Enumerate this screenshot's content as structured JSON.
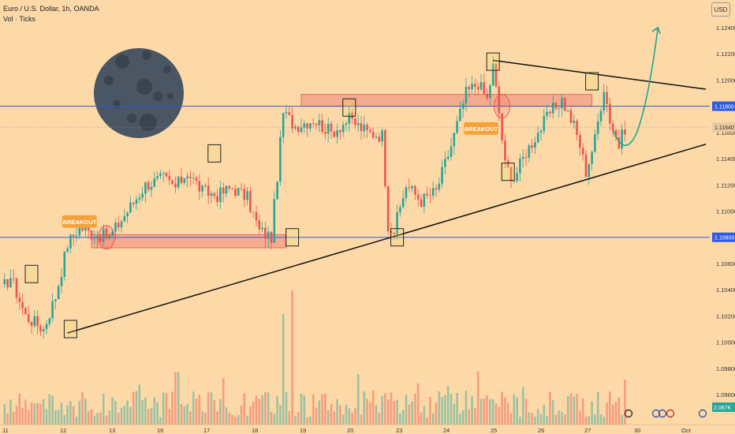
{
  "header": {
    "symbol": "Euro / U.S. Dollar, 1h, OANDA",
    "volume_label": "Vol · Ticks",
    "currency_button": "USD"
  },
  "colors": {
    "background": "#FDD9A8",
    "up": "#26A69A",
    "down": "#EF5350",
    "zone_fill": "#F4A38B",
    "zone_stroke": "#E05A4A",
    "level_line": "#2F5BE0",
    "trendline": "#111111",
    "projection": "#1FA58C",
    "breakout_badge": "#F6A23C",
    "moon": "#4A5663",
    "moon_crater": "#3A444F"
  },
  "chart_data": {
    "type": "candlestick",
    "title": "Euro / U.S. Dollar, 1h, OANDA",
    "ylabel": "USD",
    "ylim": [
      1.0945,
      1.1255
    ],
    "y_ticks": [
      "1.12400",
      "1.12200",
      "1.12000",
      "1.11800",
      "1.11600",
      "1.11400",
      "1.11200",
      "1.11000",
      "1.10800",
      "1.10600",
      "1.10400",
      "1.10200",
      "1.10000",
      "1.09800",
      "1.09600"
    ],
    "x_ticks": [
      "11",
      "12",
      "13",
      "16",
      "17",
      "18",
      "19",
      "20",
      "23",
      "24",
      "25",
      "26",
      "27",
      "30",
      "Oct"
    ],
    "price_labels": [
      {
        "value": 1.118,
        "text": "1.11800",
        "style": "level"
      },
      {
        "value": 1.1164,
        "text": "1.11640",
        "style": "current"
      },
      {
        "value": 1.108,
        "text": "1.10800",
        "style": "level"
      }
    ],
    "volume_label": "2.067K",
    "key_points": [
      {
        "t": 0,
        "price": 1.104
      },
      {
        "t": 3,
        "price": 1.105
      },
      {
        "t": 8,
        "price": 1.102
      },
      {
        "t": 14,
        "price": 1.101
      },
      {
        "t": 18,
        "price": 1.1035
      },
      {
        "t": 22,
        "price": 1.1075
      },
      {
        "t": 26,
        "price": 1.1088
      },
      {
        "t": 30,
        "price": 1.1083
      },
      {
        "t": 36,
        "price": 1.108
      },
      {
        "t": 42,
        "price": 1.11
      },
      {
        "t": 48,
        "price": 1.112
      },
      {
        "t": 54,
        "price": 1.1125
      },
      {
        "t": 58,
        "price": 1.1118
      },
      {
        "t": 62,
        "price": 1.113
      },
      {
        "t": 67,
        "price": 1.1115
      },
      {
        "t": 72,
        "price": 1.1112
      },
      {
        "t": 77,
        "price": 1.1118
      },
      {
        "t": 82,
        "price": 1.111
      },
      {
        "t": 86,
        "price": 1.1085
      },
      {
        "t": 90,
        "price": 1.108
      },
      {
        "t": 94,
        "price": 1.1175
      },
      {
        "t": 98,
        "price": 1.1165
      },
      {
        "t": 104,
        "price": 1.117
      },
      {
        "t": 110,
        "price": 1.116
      },
      {
        "t": 116,
        "price": 1.117
      },
      {
        "t": 122,
        "price": 1.116
      },
      {
        "t": 127,
        "price": 1.1158
      },
      {
        "t": 129,
        "price": 1.109
      },
      {
        "t": 131,
        "price": 1.1085
      },
      {
        "t": 135,
        "price": 1.112
      },
      {
        "t": 140,
        "price": 1.1108
      },
      {
        "t": 145,
        "price": 1.1115
      },
      {
        "t": 150,
        "price": 1.115
      },
      {
        "t": 155,
        "price": 1.119
      },
      {
        "t": 159,
        "price": 1.1198
      },
      {
        "t": 162,
        "price": 1.1185
      },
      {
        "t": 164,
        "price": 1.121
      },
      {
        "t": 166,
        "price": 1.1175
      },
      {
        "t": 168,
        "price": 1.1135
      },
      {
        "t": 171,
        "price": 1.1125
      },
      {
        "t": 175,
        "price": 1.1145
      },
      {
        "t": 179,
        "price": 1.116
      },
      {
        "t": 183,
        "price": 1.1175
      },
      {
        "t": 187,
        "price": 1.1185
      },
      {
        "t": 191,
        "price": 1.1165
      },
      {
        "t": 193,
        "price": 1.115
      },
      {
        "t": 195,
        "price": 1.113
      },
      {
        "t": 198,
        "price": 1.1155
      },
      {
        "t": 201,
        "price": 1.1195
      },
      {
        "t": 203,
        "price": 1.117
      },
      {
        "t": 206,
        "price": 1.115
      },
      {
        "t": 208,
        "price": 1.1164
      }
    ],
    "zones": [
      {
        "t0": 30,
        "t1": 95,
        "p0": 1.1072,
        "p1": 1.1082
      },
      {
        "t0": 100,
        "t1": 197,
        "p0": 1.118,
        "p1": 1.1189
      }
    ],
    "levels": [
      1.118,
      1.108
    ],
    "trendlines": [
      {
        "t0": 22,
        "p0": 1.1007,
        "t1": 235,
        "p1": 1.1151
      },
      {
        "t0": 164,
        "p0": 1.1215,
        "t1": 235,
        "p1": 1.1193
      }
    ],
    "boxes": [
      {
        "t": 10,
        "p": 1.1052
      },
      {
        "t": 23,
        "p": 1.101
      },
      {
        "t": 71,
        "p": 1.1144
      },
      {
        "t": 97,
        "p": 1.108
      },
      {
        "t": 116,
        "p": 1.1179
      },
      {
        "t": 132,
        "p": 1.108
      },
      {
        "t": 164,
        "p": 1.1214
      },
      {
        "t": 169,
        "p": 1.113
      },
      {
        "t": 197,
        "p": 1.1199
      }
    ],
    "circles": [
      {
        "t": 35,
        "p": 1.108
      },
      {
        "t": 167,
        "p": 1.118
      }
    ],
    "breakout_labels": [
      {
        "text": "BREAKOUT",
        "t": 26,
        "p": 1.1092
      },
      {
        "text": "BREAKOUT",
        "t": 160,
        "p": 1.1163
      }
    ],
    "projection": [
      {
        "t": 204,
        "p": 1.1162
      },
      {
        "t": 208,
        "p": 1.115
      },
      {
        "t": 212,
        "p": 1.116
      },
      {
        "t": 216,
        "p": 1.1185
      },
      {
        "t": 219,
        "p": 1.124
      }
    ]
  }
}
